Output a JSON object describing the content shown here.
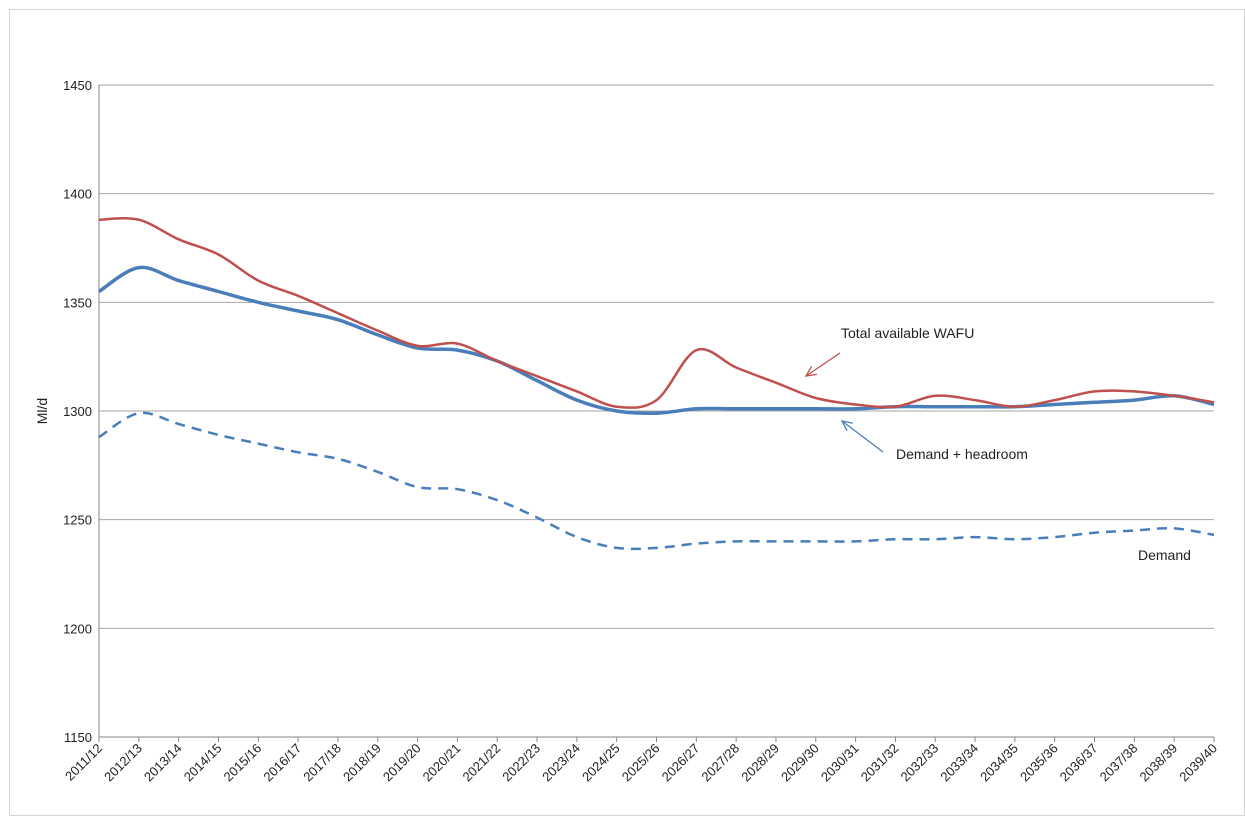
{
  "chart_data": {
    "type": "line",
    "title": "",
    "xlabel": "",
    "ylabel": "Ml/d",
    "ylim": [
      1150,
      1450
    ],
    "yticks": [
      1150,
      1200,
      1250,
      1300,
      1350,
      1400,
      1450
    ],
    "grid": "horizontal",
    "categories": [
      "2011/12",
      "2012/13",
      "2013/14",
      "2014/15",
      "2015/16",
      "2016/17",
      "2017/18",
      "2018/19",
      "2019/20",
      "2020/21",
      "2021/22",
      "2022/23",
      "2023/24",
      "2024/25",
      "2025/26",
      "2026/27",
      "2027/28",
      "2028/29",
      "2029/30",
      "2030/31",
      "2031/32",
      "2032/33",
      "2033/34",
      "2034/35",
      "2035/36",
      "2036/37",
      "2037/38",
      "2038/39",
      "2039/40"
    ],
    "series": [
      {
        "name": "Total available WAFU",
        "color": "#c0504d",
        "style": "solid",
        "values": [
          1388,
          1388,
          1379,
          1372,
          1360,
          1353,
          1345,
          1337,
          1330,
          1331,
          1323,
          1316,
          1309,
          1302,
          1305,
          1328,
          1320,
          1313,
          1306,
          1303,
          1302,
          1307,
          1305,
          1302,
          1305,
          1309,
          1309,
          1307,
          1304
        ]
      },
      {
        "name": "Demand + headroom",
        "color": "#4a7ebb",
        "style": "solid",
        "values": [
          1355,
          1366,
          1360,
          1355,
          1350,
          1346,
          1342,
          1335,
          1329,
          1328,
          1323,
          1314,
          1305,
          1300,
          1299,
          1301,
          1301,
          1301,
          1301,
          1301,
          1302,
          1302,
          1302,
          1302,
          1303,
          1304,
          1305,
          1307,
          1303
        ]
      },
      {
        "name": "Demand",
        "color": "#4a7ebb",
        "style": "dashed",
        "values": [
          1288,
          1299,
          1294,
          1289,
          1285,
          1281,
          1278,
          1272,
          1265,
          1264,
          1259,
          1251,
          1242,
          1237,
          1237,
          1239,
          1240,
          1240,
          1240,
          1240,
          1241,
          1241,
          1242,
          1241,
          1242,
          1244,
          1245,
          1246,
          1243
        ]
      }
    ],
    "annotations": [
      {
        "text": "Total available WAFU",
        "series": "Total available WAFU"
      },
      {
        "text": "Demand + headroom",
        "series": "Demand + headroom"
      },
      {
        "text": "Demand",
        "series": "Demand"
      }
    ]
  }
}
